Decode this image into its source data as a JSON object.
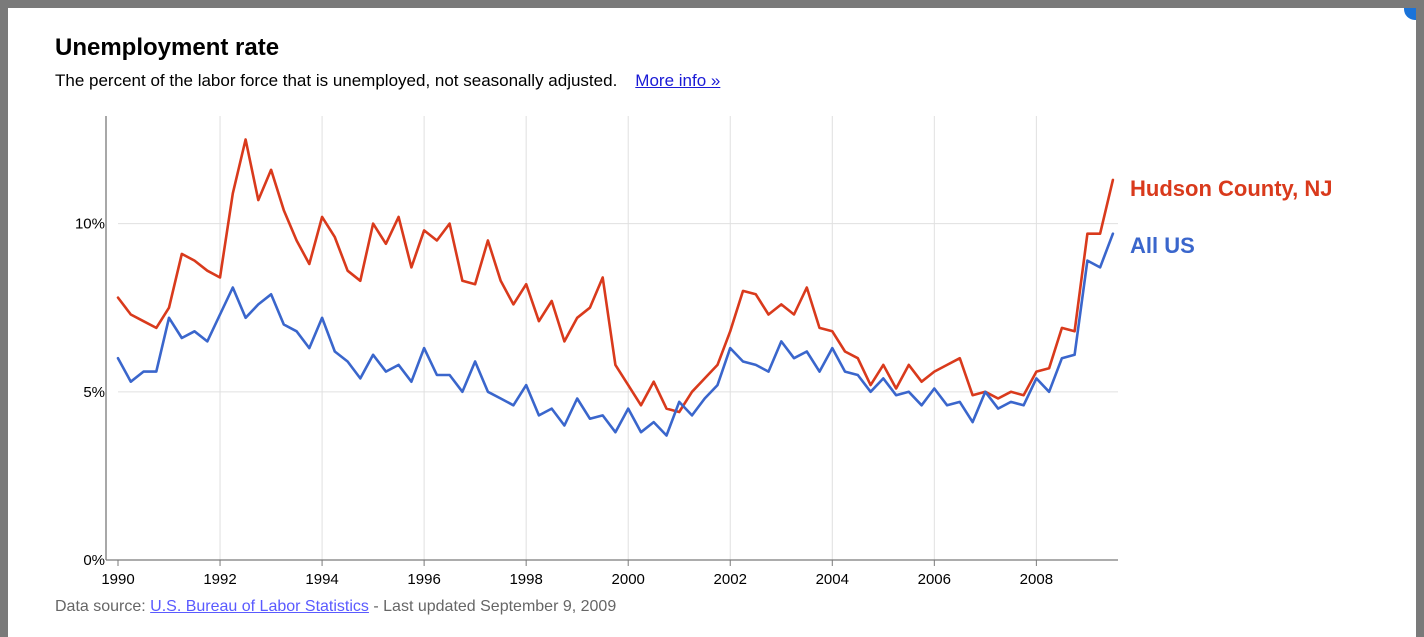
{
  "header": {
    "title": "Unemployment rate",
    "subtitle": "The percent of the labor force that is unemployed, not seasonally adjusted.",
    "more_info_label": "More info »"
  },
  "footer": {
    "prefix": "Data source: ",
    "source_link": "U.S. Bureau of Labor Statistics",
    "suffix": " - Last updated September 9, 2009"
  },
  "colors": {
    "hudson": "#d93a1c",
    "us": "#3a66cc",
    "grid": "#e0e0e0",
    "axis": "#7a7a7a"
  },
  "chart_data": {
    "type": "line",
    "title": "Unemployment rate",
    "xlabel": "",
    "ylabel": "",
    "xlim": [
      1990,
      2009.6
    ],
    "ylim": [
      0,
      13.2
    ],
    "grid": true,
    "y_ticks": [
      0,
      5,
      10
    ],
    "y_tick_labels": [
      "0%",
      "5%",
      "10%"
    ],
    "x_ticks": [
      1990,
      1992,
      1994,
      1996,
      1998,
      2000,
      2002,
      2004,
      2006,
      2008
    ],
    "x_tick_labels": [
      "1990",
      "1992",
      "1994",
      "1996",
      "1998",
      "2000",
      "2002",
      "2004",
      "2006",
      "2008"
    ],
    "series": [
      {
        "name": "Hudson County, NJ",
        "color": "#d93a1c",
        "x": [
          1990.0,
          1990.25,
          1990.5,
          1990.75,
          1991.0,
          1991.25,
          1991.5,
          1991.75,
          1992.0,
          1992.25,
          1992.5,
          1992.75,
          1993.0,
          1993.25,
          1993.5,
          1993.75,
          1994.0,
          1994.25,
          1994.5,
          1994.75,
          1995.0,
          1995.25,
          1995.5,
          1995.75,
          1996.0,
          1996.25,
          1996.5,
          1996.75,
          1997.0,
          1997.25,
          1997.5,
          1997.75,
          1998.0,
          1998.25,
          1998.5,
          1998.75,
          1999.0,
          1999.25,
          1999.5,
          1999.75,
          2000.0,
          2000.25,
          2000.5,
          2000.75,
          2001.0,
          2001.25,
          2001.5,
          2001.75,
          2002.0,
          2002.25,
          2002.5,
          2002.75,
          2003.0,
          2003.25,
          2003.5,
          2003.75,
          2004.0,
          2004.25,
          2004.5,
          2004.75,
          2005.0,
          2005.25,
          2005.5,
          2005.75,
          2006.0,
          2006.25,
          2006.5,
          2006.75,
          2007.0,
          2007.25,
          2007.5,
          2007.75,
          2008.0,
          2008.25,
          2008.5,
          2008.75,
          2009.0,
          2009.25,
          2009.5
        ],
        "y": [
          7.8,
          7.3,
          7.1,
          6.9,
          7.5,
          9.1,
          8.9,
          8.6,
          8.4,
          10.9,
          12.5,
          10.7,
          11.6,
          10.4,
          9.5,
          8.8,
          10.2,
          9.6,
          8.6,
          8.3,
          10.0,
          9.4,
          10.2,
          8.7,
          9.8,
          9.5,
          10.0,
          8.3,
          8.2,
          9.5,
          8.3,
          7.6,
          8.2,
          7.1,
          7.7,
          6.5,
          7.2,
          7.5,
          8.4,
          5.8,
          5.2,
          4.6,
          5.3,
          4.5,
          4.4,
          5.0,
          5.4,
          5.8,
          6.8,
          8.0,
          7.9,
          7.3,
          7.6,
          7.3,
          8.1,
          6.9,
          6.8,
          6.2,
          6.0,
          5.2,
          5.8,
          5.1,
          5.8,
          5.3,
          5.6,
          5.8,
          6.0,
          4.9,
          5.0,
          4.8,
          5.0,
          4.9,
          5.6,
          5.7,
          6.9,
          6.8,
          9.7,
          9.7,
          11.3
        ]
      },
      {
        "name": "All US",
        "color": "#3a66cc",
        "x": [
          1990.0,
          1990.25,
          1990.5,
          1990.75,
          1991.0,
          1991.25,
          1991.5,
          1991.75,
          1992.0,
          1992.25,
          1992.5,
          1992.75,
          1993.0,
          1993.25,
          1993.5,
          1993.75,
          1994.0,
          1994.25,
          1994.5,
          1994.75,
          1995.0,
          1995.25,
          1995.5,
          1995.75,
          1996.0,
          1996.25,
          1996.5,
          1996.75,
          1997.0,
          1997.25,
          1997.5,
          1997.75,
          1998.0,
          1998.25,
          1998.5,
          1998.75,
          1999.0,
          1999.25,
          1999.5,
          1999.75,
          2000.0,
          2000.25,
          2000.5,
          2000.75,
          2001.0,
          2001.25,
          2001.5,
          2001.75,
          2002.0,
          2002.25,
          2002.5,
          2002.75,
          2003.0,
          2003.25,
          2003.5,
          2003.75,
          2004.0,
          2004.25,
          2004.5,
          2004.75,
          2005.0,
          2005.25,
          2005.5,
          2005.75,
          2006.0,
          2006.25,
          2006.5,
          2006.75,
          2007.0,
          2007.25,
          2007.5,
          2007.75,
          2008.0,
          2008.25,
          2008.5,
          2008.75,
          2009.0,
          2009.25,
          2009.5
        ],
        "y": [
          6.0,
          5.3,
          5.6,
          5.6,
          7.2,
          6.6,
          6.8,
          6.5,
          7.3,
          8.1,
          7.2,
          7.6,
          7.9,
          7.0,
          6.8,
          6.3,
          7.2,
          6.2,
          5.9,
          5.4,
          6.1,
          5.6,
          5.8,
          5.3,
          6.3,
          5.5,
          5.5,
          5.0,
          5.9,
          5.0,
          4.8,
          4.6,
          5.2,
          4.3,
          4.5,
          4.0,
          4.8,
          4.2,
          4.3,
          3.8,
          4.5,
          3.8,
          4.1,
          3.7,
          4.7,
          4.3,
          4.8,
          5.2,
          6.3,
          5.9,
          5.8,
          5.6,
          6.5,
          6.0,
          6.2,
          5.6,
          6.3,
          5.6,
          5.5,
          5.0,
          5.4,
          4.9,
          5.0,
          4.6,
          5.1,
          4.6,
          4.7,
          4.1,
          5.0,
          4.5,
          4.7,
          4.6,
          5.4,
          5.0,
          6.0,
          6.1,
          8.9,
          8.7,
          9.7
        ]
      }
    ]
  }
}
